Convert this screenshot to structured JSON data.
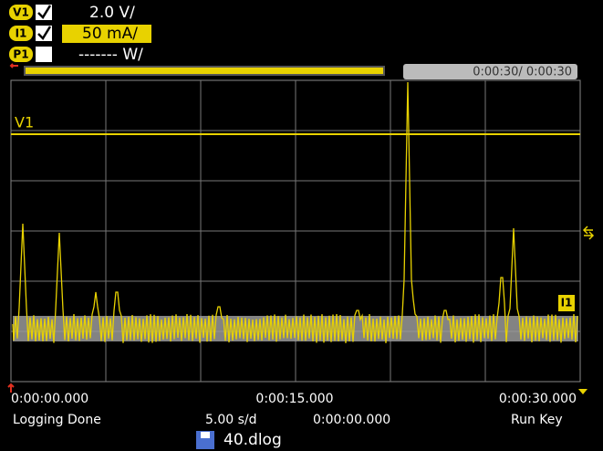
{
  "channels": [
    {
      "badge": "V1",
      "scale": "2.0 V/"
    },
    {
      "badge": "I1",
      "scale": "50 mA/"
    },
    {
      "badge": "P1",
      "scale": "------- W/"
    }
  ],
  "progress": {
    "time": "0:00:30/ 0:00:30"
  },
  "plot": {
    "trace_label": "V1",
    "marker_label": "I1"
  },
  "time_axis": {
    "start": "0:00:00.000",
    "middle": "0:00:15.000",
    "end": "0:00:30.000"
  },
  "status": {
    "state": "Logging Done",
    "timebase": "5.00 s/d",
    "offset": "0:00:00.000",
    "trigger": "Run Key"
  },
  "file": {
    "name": "40.dlog"
  }
}
